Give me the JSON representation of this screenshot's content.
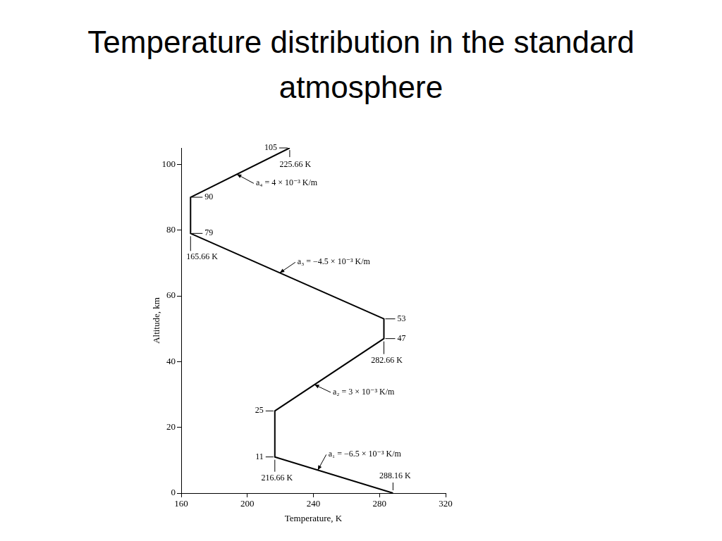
{
  "chart_data": {
    "type": "line",
    "title": "Temperature distribution in the standard atmosphere",
    "x_label": "Temperature, K",
    "y_label": "Altitude, km",
    "x": [
      288.16,
      216.66,
      216.66,
      282.66,
      282.66,
      165.66,
      165.66,
      225.66
    ],
    "values": [
      0,
      11,
      25,
      47,
      53,
      79,
      90,
      105
    ],
    "color": "#000000",
    "xlim": [
      160,
      320
    ],
    "xticks": [
      160,
      200,
      240,
      280,
      320
    ],
    "ylim": [
      0,
      105
    ],
    "yticks": [
      0,
      20,
      40,
      60,
      80,
      100
    ],
    "grid": false,
    "annotations": [
      {
        "text": "105",
        "x": 225.66,
        "y": 105
      },
      {
        "text": "225.66 K",
        "x": 225.66,
        "y": 105
      },
      {
        "text": "a₄ = 4 × 10⁻³ K/m",
        "x": 193.66,
        "y": 97
      },
      {
        "text": "90",
        "x": 165.66,
        "y": 90
      },
      {
        "text": "79",
        "x": 165.66,
        "y": 79
      },
      {
        "text": "165.66 K",
        "x": 165.66,
        "y": 79
      },
      {
        "text": "a₃ = −4.5 × 10⁻³ K/m",
        "x": 219.66,
        "y": 67
      },
      {
        "text": "53",
        "x": 282.66,
        "y": 53
      },
      {
        "text": "47",
        "x": 282.66,
        "y": 47
      },
      {
        "text": "282.66 K",
        "x": 282.66,
        "y": 47
      },
      {
        "text": "a₂ = 3 × 10⁻³ K/m",
        "x": 240.66,
        "y": 33
      },
      {
        "text": "25",
        "x": 216.66,
        "y": 25
      },
      {
        "text": "11",
        "x": 216.66,
        "y": 11
      },
      {
        "text": "216.66 K",
        "x": 216.66,
        "y": 11
      },
      {
        "text": "a₁ = −6.5 × 10⁻³ K/m",
        "x": 242.66,
        "y": 7
      },
      {
        "text": "288.16 K",
        "x": 288.16,
        "y": 0
      }
    ]
  }
}
